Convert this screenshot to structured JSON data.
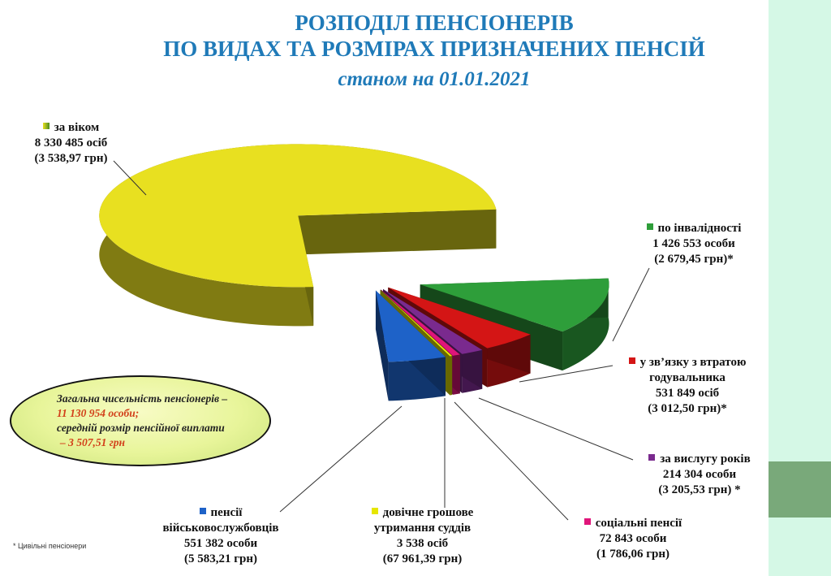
{
  "title": {
    "line1": "РОЗПОДІЛ ПЕНСІОНЕРІВ",
    "line2": "ПО ВИДАХ ТА РОЗМІРАХ ПРИЗНАЧЕНИХ ПЕНСІЙ",
    "line3": "станом на 01.01.2021"
  },
  "summary": {
    "line1": "Загальна чисельність пенсіонерів –",
    "line2": "11 130 954 особи;",
    "line3": "середній розмір пенсійної виплати",
    "line4": "–  3 507,51 грн"
  },
  "footnote": "* Цивільні пенсіонери",
  "colors": {
    "side_panel": "#d5f8e6",
    "side_block": "#79a97a",
    "title": "#1f7ab8"
  },
  "chart_data": {
    "type": "pie",
    "style": "3d-exploded",
    "slices": [
      {
        "name": "за віком",
        "value": 8330485,
        "count_label": "8 330 485 осіб",
        "amount_label": "(3 538,97 грн)",
        "color": "#e8e020"
      },
      {
        "name": "по інвалідності",
        "value": 1426553,
        "count_label": "1 426 553 особи",
        "amount_label": "(2 679,45 грн)*",
        "color": "#2e9e3a"
      },
      {
        "name": "у зв’язку з втратою годувальника",
        "value": 531849,
        "count_label": "531 849 осіб",
        "amount_label": "(3 012,50 грн)*",
        "color": "#d41515"
      },
      {
        "name": "за вислугу років",
        "value": 214304,
        "count_label": "214 304 особи",
        "amount_label": "(3 205,53 грн) *",
        "color": "#7a2a8e"
      },
      {
        "name": "соціальні пенсії",
        "value": 72843,
        "count_label": "72 843  особи",
        "amount_label": "(1 786,06 грн)",
        "color": "#e0157a"
      },
      {
        "name": "довічне грошове утримання суддів",
        "value": 3538,
        "count_label": "3 538 осіб",
        "amount_label": "(67 961,39 грн)",
        "color": "#e6e600"
      },
      {
        "name": "пенсії військовослужбовців",
        "value": 551382,
        "count_label": "551 382 особи",
        "amount_label": "(5 583,21 грн)",
        "color": "#1e62c8"
      }
    ]
  }
}
